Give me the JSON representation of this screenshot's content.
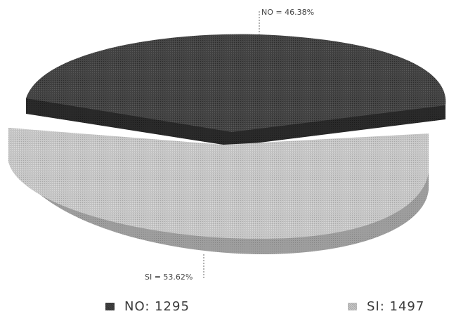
{
  "chart_data": {
    "type": "pie",
    "slices": [
      {
        "name": "NO",
        "value": 1295,
        "percent": 46.38,
        "label": "NO = 46.38%",
        "legend": "NO: 1295",
        "color": "#3f3f3f"
      },
      {
        "name": "SI",
        "value": 1497,
        "percent": 53.62,
        "label": "SI = 53.62%",
        "legend": "SI: 1497",
        "color": "#c2c2c2"
      }
    ],
    "legend_position": "bottom",
    "style": "3d-exploded"
  }
}
